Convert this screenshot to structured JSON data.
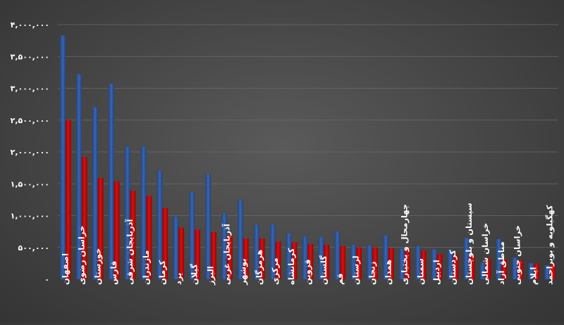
{
  "chart_data": {
    "type": "bar",
    "title": "",
    "xlabel": "",
    "ylabel": "",
    "ylim": [
      0,
      4000000
    ],
    "y_ticks": [
      0,
      500000,
      1000000,
      1500000,
      2000000,
      2500000,
      3000000,
      3500000,
      4000000
    ],
    "y_tick_labels": [
      "۰",
      "۵۰۰,۰۰۰",
      "۱,۰۰۰,۰۰۰",
      "۱,۵۰۰,۰۰۰",
      "۲,۰۰۰,۰۰۰",
      "۲,۵۰۰,۰۰۰",
      "۳,۰۰۰,۰۰۰",
      "۳,۵۰۰,۰۰۰",
      "۴,۰۰۰,۰۰۰"
    ],
    "grid": true,
    "legend": "none",
    "colors": [
      "#2f5597",
      "#c00000"
    ],
    "categories": [
      "اصفهان",
      "خراسان رضوی",
      "خوزستان",
      "فارس",
      "آذربایجان شرقی",
      "مازندران",
      "کرمان",
      "یزد",
      "گیلان",
      "البرز",
      "آذربایجان غربی",
      "بوشهر",
      "هرمزگان",
      "مرکزی",
      "کرمانشاه",
      "قزوین",
      "گلستان",
      "قم",
      "لرستان",
      "زنجان",
      "همدان",
      "چهارمحال و بختیاری",
      "سمنان",
      "اردبیل",
      "کردستان",
      "سیستان و بلوچستان",
      "خراسان شمالی",
      "مناطق آزاد",
      "خراسان جنوبی",
      "ایلام",
      "کهگیلویه و بویراحمد"
    ],
    "series": [
      {
        "values": [
          3830000,
          3220000,
          2700000,
          3070000,
          2080000,
          2080000,
          1700000,
          980000,
          1370000,
          1650000,
          1030000,
          1240000,
          860000,
          860000,
          720000,
          670000,
          660000,
          750000,
          540000,
          530000,
          690000,
          480000,
          520000,
          470000,
          460000,
          650000,
          260000,
          630000,
          340000,
          250000,
          220000
        ]
      },
      {
        "values": [
          2500000,
          1920000,
          1590000,
          1540000,
          1390000,
          1310000,
          1120000,
          810000,
          780000,
          740000,
          690000,
          640000,
          640000,
          590000,
          580000,
          550000,
          540000,
          520000,
          500000,
          500000,
          490000,
          480000,
          450000,
          390000,
          390000,
          380000,
          320000,
          310000,
          300000,
          240000,
          230000
        ]
      }
    ]
  }
}
